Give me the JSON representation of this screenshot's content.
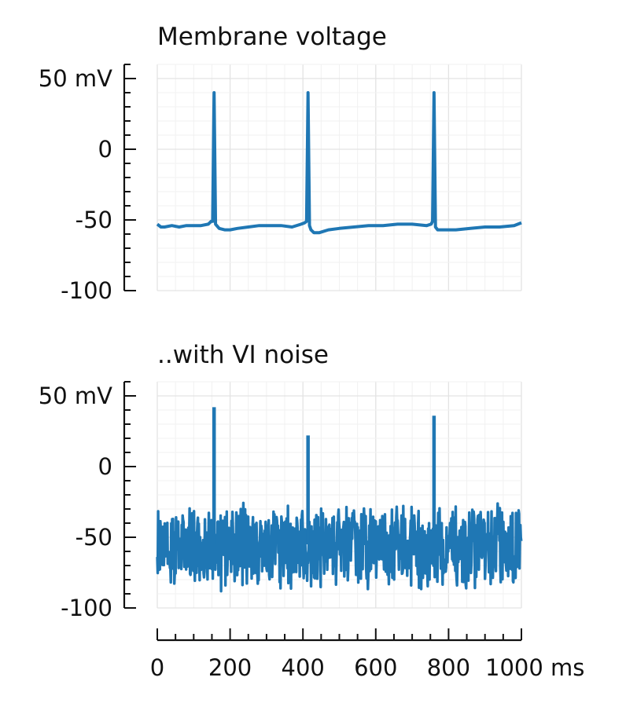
{
  "chart_data": [
    {
      "type": "line",
      "title": "Membrane voltage",
      "xlabel": "",
      "ylabel": "",
      "y_unit": "mV",
      "xlim": [
        0,
        1000
      ],
      "ylim": [
        -100,
        60
      ],
      "yticks": [
        {
          "value": 50,
          "label": "50 mV"
        },
        {
          "value": 0,
          "label": "0"
        },
        {
          "value": -50,
          "label": "-50"
        },
        {
          "value": -100,
          "label": "-100"
        }
      ],
      "x_tick_labels_shown": false,
      "grid": true,
      "legend": "none",
      "series": [
        {
          "color": "#1f77b4",
          "x": [
            0,
            10,
            20,
            40,
            60,
            80,
            100,
            120,
            140,
            148,
            152,
            156,
            160,
            170,
            185,
            200,
            220,
            250,
            280,
            310,
            340,
            370,
            395,
            405,
            410,
            414,
            418,
            422,
            430,
            445,
            470,
            500,
            540,
            580,
            620,
            660,
            700,
            740,
            752,
            756,
            760,
            764,
            770,
            790,
            820,
            860,
            900,
            940,
            980,
            1000
          ],
          "y": [
            -53,
            -55,
            -55,
            -54,
            -55,
            -54,
            -54,
            -54,
            -53,
            -51,
            -51,
            40,
            -53,
            -56,
            -57,
            -57,
            -56,
            -55,
            -54,
            -54,
            -54,
            -55,
            -53,
            -52,
            -51,
            40,
            -54,
            -57,
            -59,
            -59,
            -57,
            -56,
            -55,
            -54,
            -54,
            -53,
            -53,
            -54,
            -53,
            -51,
            40,
            -55,
            -57,
            -57,
            -57,
            -56,
            -55,
            -55,
            -54,
            -52
          ]
        }
      ],
      "spikes_ms": [
        156,
        414,
        760
      ]
    },
    {
      "type": "line",
      "title": "..with VI noise",
      "xlabel": "",
      "ylabel": "",
      "y_unit": "mV",
      "x_unit": "ms",
      "xlim": [
        0,
        1000
      ],
      "ylim": [
        -100,
        60
      ],
      "yticks": [
        {
          "value": 50,
          "label": "50 mV"
        },
        {
          "value": 0,
          "label": "0"
        },
        {
          "value": -50,
          "label": "-50"
        },
        {
          "value": -100,
          "label": "-100"
        }
      ],
      "xticks": [
        {
          "value": 0,
          "label": "0"
        },
        {
          "value": 200,
          "label": "200"
        },
        {
          "value": 400,
          "label": "400"
        },
        {
          "value": 600,
          "label": "600"
        },
        {
          "value": 800,
          "label": "800"
        },
        {
          "value": 1000,
          "label": "1000 ms"
        }
      ],
      "grid": true,
      "legend": "none",
      "series": [
        {
          "color": "#1f77b4",
          "noise_band": {
            "baseline": -55,
            "upper_approx": -25,
            "lower_approx": -90
          },
          "spikes": [
            {
              "x": 156,
              "y": 42
            },
            {
              "x": 414,
              "y": 22
            },
            {
              "x": 760,
              "y": 36
            }
          ]
        }
      ]
    }
  ]
}
